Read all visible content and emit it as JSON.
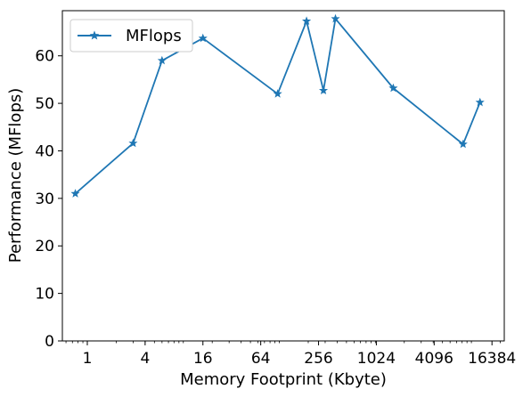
{
  "chart_data": {
    "type": "line",
    "title": "",
    "xlabel": "Memory Footprint (Kbyte)",
    "ylabel": "Performance (MFlops)",
    "x_scale": "log2",
    "xlim": [
      0.55,
      22000
    ],
    "ylim": [
      0,
      69.5
    ],
    "x_ticks": [
      1,
      4,
      16,
      64,
      256,
      1024,
      4096,
      16384
    ],
    "x_tick_labels": [
      "1",
      "4",
      "16",
      "64",
      "256",
      "1024",
      "4096",
      "16384"
    ],
    "y_ticks": [
      0,
      10,
      20,
      30,
      40,
      50,
      60
    ],
    "y_tick_labels": [
      "0",
      "10",
      "20",
      "30",
      "40",
      "50",
      "60"
    ],
    "grid": false,
    "legend_position": "top-left",
    "series": [
      {
        "name": "MFlops",
        "color": "#1f77b4",
        "marker": "star",
        "x": [
          0.75,
          3,
          6,
          16,
          96,
          192,
          288,
          384,
          1536,
          8192,
          12288
        ],
        "y": [
          31.0,
          41.6,
          59.0,
          63.7,
          52.0,
          67.3,
          52.7,
          67.8,
          53.2,
          41.4,
          50.2
        ]
      }
    ]
  }
}
